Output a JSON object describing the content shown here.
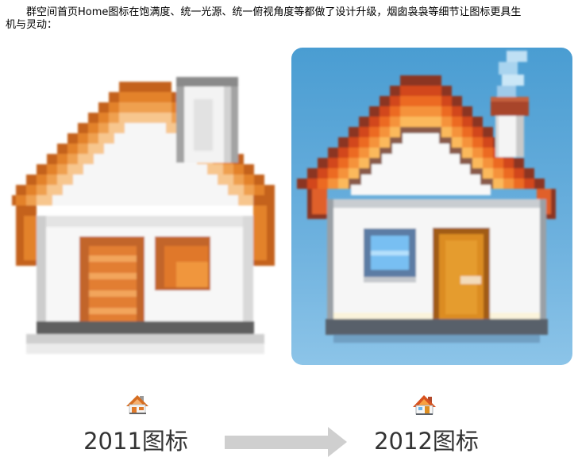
{
  "intro": {
    "text": "群空间首页Home图标在饱满度、统一光源、统一俯视角度等都做了设计升级，烟囱袅袅等细节让图标更具生机与灵动："
  },
  "comparison": {
    "before": {
      "label": "2011图标",
      "icon_large": "house-icon",
      "icon_small": "house-icon"
    },
    "after": {
      "label": "2012图标",
      "icon_large": "house-icon",
      "icon_small": "house-icon"
    },
    "transition_icon": "arrow-right-icon"
  },
  "colors": {
    "text": "#000000",
    "label": "#333333",
    "arrow": "#cfcfcf",
    "icon_2012_background": "#4a9dd2",
    "roof_2011": "#e3822c",
    "roof_2012": "#d2461a",
    "door_2011": "#e27e30",
    "door_2012": "#dc8c22",
    "window_2012": "#78bff2",
    "smoke_2012": "#bfe0f4"
  }
}
